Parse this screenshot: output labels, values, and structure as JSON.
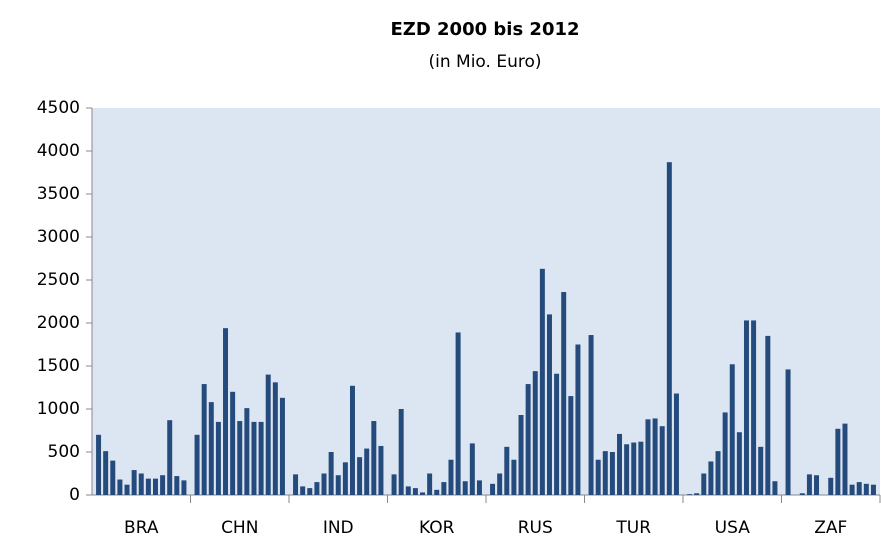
{
  "chart_data": {
    "type": "bar",
    "title": "EZD 2000 bis 2012",
    "subtitle": "(in Mio. Euro)",
    "categories": [
      "BRA",
      "CHN",
      "IND",
      "KOR",
      "RUS",
      "TUR",
      "USA",
      "ZAF"
    ],
    "values": [
      [
        700,
        510,
        400,
        180,
        120,
        290,
        250,
        190,
        190,
        230,
        870,
        220,
        170
      ],
      [
        700,
        1290,
        1080,
        850,
        1940,
        1200,
        860,
        1010,
        850,
        850,
        1400,
        1310,
        1130
      ],
      [
        240,
        100,
        80,
        150,
        250,
        500,
        230,
        380,
        1270,
        440,
        540,
        860,
        570
      ],
      [
        240,
        1000,
        100,
        80,
        30,
        250,
        60,
        150,
        410,
        1890,
        160,
        600,
        170
      ],
      [
        130,
        250,
        560,
        410,
        930,
        1290,
        1440,
        2630,
        2100,
        1410,
        2360,
        1150,
        1750
      ],
      [
        1860,
        410,
        510,
        500,
        710,
        590,
        610,
        620,
        880,
        890,
        800,
        3870,
        1180
      ],
      [
        10,
        20,
        250,
        390,
        510,
        960,
        1520,
        730,
        2030,
        2030,
        560,
        1850,
        160
      ],
      [
        1460,
        0,
        20,
        240,
        230,
        0,
        200,
        770,
        830,
        120,
        150,
        130,
        120
      ]
    ],
    "color": "#254a7c",
    "ylim": [
      0,
      4500
    ],
    "yticks": [
      0,
      500,
      1000,
      1500,
      2000,
      2500,
      3000,
      3500,
      4000,
      4500
    ]
  }
}
